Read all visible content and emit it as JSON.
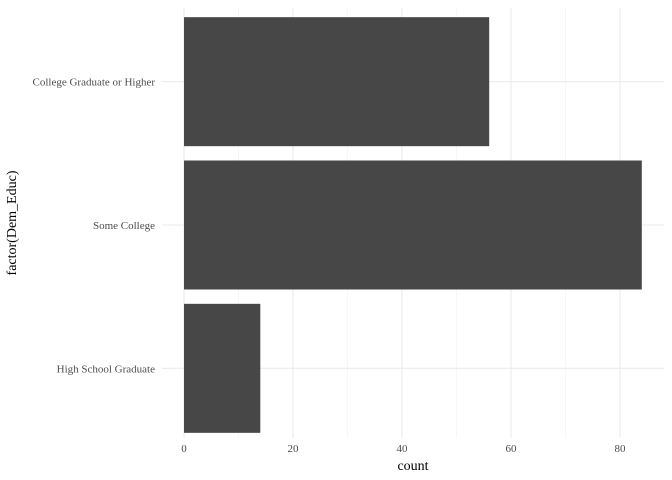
{
  "chart_data": {
    "type": "bar",
    "orientation": "horizontal",
    "categories": [
      "College Graduate or Higher",
      "Some College",
      "High School Graduate"
    ],
    "values": [
      56,
      84,
      14
    ],
    "xlabel": "count",
    "ylabel": "factor(Dem_Educ)",
    "xlim": [
      0,
      88
    ],
    "x_ticks": [
      0,
      20,
      40,
      60,
      80
    ],
    "grid": true,
    "legend": "none",
    "colors": {
      "bar": "#474747",
      "grid_major": "#ebebeb",
      "grid_minor": "#f2f2f2",
      "background": "#ffffff"
    }
  }
}
